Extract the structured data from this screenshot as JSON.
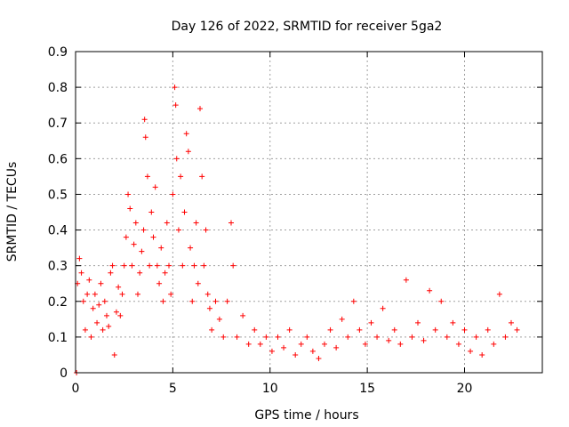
{
  "chart_data": {
    "type": "scatter",
    "title": "Day 126 of 2022, SRMTID for receiver 5ga2",
    "xlabel": "GPS time / hours",
    "ylabel": "SRMTID / TECUs",
    "xlim": [
      0,
      24
    ],
    "ylim": [
      0,
      0.9
    ],
    "xticks": [
      0,
      5,
      10,
      15,
      20
    ],
    "yticks": [
      0,
      0.1,
      0.2,
      0.3,
      0.4,
      0.5,
      0.6,
      0.7,
      0.8,
      0.9
    ],
    "xtick_labels": [
      "0",
      "5",
      "10",
      "15",
      "20"
    ],
    "ytick_labels": [
      "0",
      "0.1",
      "0.2",
      "0.3",
      "0.4",
      "0.5",
      "0.6",
      "0.7",
      "0.8",
      "0.9"
    ],
    "grid": true,
    "marker": "+",
    "series": [
      {
        "name": "SRMTID",
        "color": "#ff0000",
        "points": [
          [
            0.05,
            0.0
          ],
          [
            0.1,
            0.25
          ],
          [
            0.2,
            0.32
          ],
          [
            0.3,
            0.28
          ],
          [
            0.4,
            0.2
          ],
          [
            0.5,
            0.12
          ],
          [
            0.6,
            0.22
          ],
          [
            0.7,
            0.26
          ],
          [
            0.8,
            0.1
          ],
          [
            0.9,
            0.18
          ],
          [
            1.0,
            0.22
          ],
          [
            1.1,
            0.14
          ],
          [
            1.2,
            0.19
          ],
          [
            1.3,
            0.25
          ],
          [
            1.4,
            0.12
          ],
          [
            1.5,
            0.2
          ],
          [
            1.6,
            0.16
          ],
          [
            1.7,
            0.13
          ],
          [
            1.8,
            0.28
          ],
          [
            1.9,
            0.3
          ],
          [
            2.0,
            0.05
          ],
          [
            2.1,
            0.17
          ],
          [
            2.2,
            0.24
          ],
          [
            2.3,
            0.16
          ],
          [
            2.4,
            0.22
          ],
          [
            2.5,
            0.3
          ],
          [
            2.6,
            0.38
          ],
          [
            2.7,
            0.5
          ],
          [
            2.8,
            0.46
          ],
          [
            2.9,
            0.3
          ],
          [
            3.0,
            0.36
          ],
          [
            3.1,
            0.42
          ],
          [
            3.2,
            0.22
          ],
          [
            3.3,
            0.28
          ],
          [
            3.4,
            0.34
          ],
          [
            3.5,
            0.4
          ],
          [
            3.55,
            0.71
          ],
          [
            3.6,
            0.66
          ],
          [
            3.7,
            0.55
          ],
          [
            3.8,
            0.3
          ],
          [
            3.9,
            0.45
          ],
          [
            4.0,
            0.38
          ],
          [
            4.1,
            0.52
          ],
          [
            4.2,
            0.3
          ],
          [
            4.3,
            0.25
          ],
          [
            4.4,
            0.35
          ],
          [
            4.5,
            0.2
          ],
          [
            4.6,
            0.28
          ],
          [
            4.7,
            0.42
          ],
          [
            4.8,
            0.3
          ],
          [
            4.9,
            0.22
          ],
          [
            5.0,
            0.5
          ],
          [
            5.1,
            0.8
          ],
          [
            5.15,
            0.75
          ],
          [
            5.2,
            0.6
          ],
          [
            5.3,
            0.4
          ],
          [
            5.4,
            0.55
          ],
          [
            5.5,
            0.3
          ],
          [
            5.6,
            0.45
          ],
          [
            5.7,
            0.67
          ],
          [
            5.8,
            0.62
          ],
          [
            5.9,
            0.35
          ],
          [
            6.0,
            0.2
          ],
          [
            6.1,
            0.3
          ],
          [
            6.2,
            0.42
          ],
          [
            6.3,
            0.25
          ],
          [
            6.4,
            0.74
          ],
          [
            6.5,
            0.55
          ],
          [
            6.6,
            0.3
          ],
          [
            6.7,
            0.4
          ],
          [
            6.8,
            0.22
          ],
          [
            6.9,
            0.18
          ],
          [
            7.0,
            0.12
          ],
          [
            7.2,
            0.2
          ],
          [
            7.4,
            0.15
          ],
          [
            7.6,
            0.1
          ],
          [
            7.8,
            0.2
          ],
          [
            8.0,
            0.42
          ],
          [
            8.1,
            0.3
          ],
          [
            8.3,
            0.1
          ],
          [
            8.6,
            0.16
          ],
          [
            8.9,
            0.08
          ],
          [
            9.2,
            0.12
          ],
          [
            9.5,
            0.08
          ],
          [
            9.8,
            0.1
          ],
          [
            10.1,
            0.06
          ],
          [
            10.4,
            0.1
          ],
          [
            10.7,
            0.07
          ],
          [
            11.0,
            0.12
          ],
          [
            11.3,
            0.05
          ],
          [
            11.6,
            0.08
          ],
          [
            11.9,
            0.1
          ],
          [
            12.2,
            0.06
          ],
          [
            12.5,
            0.04
          ],
          [
            12.8,
            0.08
          ],
          [
            13.1,
            0.12
          ],
          [
            13.4,
            0.07
          ],
          [
            13.7,
            0.15
          ],
          [
            14.0,
            0.1
          ],
          [
            14.3,
            0.2
          ],
          [
            14.6,
            0.12
          ],
          [
            14.9,
            0.08
          ],
          [
            15.2,
            0.14
          ],
          [
            15.5,
            0.1
          ],
          [
            15.8,
            0.18
          ],
          [
            16.1,
            0.09
          ],
          [
            16.4,
            0.12
          ],
          [
            16.7,
            0.08
          ],
          [
            17.0,
            0.26
          ],
          [
            17.3,
            0.1
          ],
          [
            17.6,
            0.14
          ],
          [
            17.9,
            0.09
          ],
          [
            18.2,
            0.23
          ],
          [
            18.5,
            0.12
          ],
          [
            18.8,
            0.2
          ],
          [
            19.1,
            0.1
          ],
          [
            19.4,
            0.14
          ],
          [
            19.7,
            0.08
          ],
          [
            20.0,
            0.12
          ],
          [
            20.3,
            0.06
          ],
          [
            20.6,
            0.1
          ],
          [
            20.9,
            0.05
          ],
          [
            21.2,
            0.12
          ],
          [
            21.5,
            0.08
          ],
          [
            21.8,
            0.22
          ],
          [
            22.1,
            0.1
          ],
          [
            22.4,
            0.14
          ],
          [
            22.7,
            0.12
          ]
        ]
      }
    ]
  }
}
